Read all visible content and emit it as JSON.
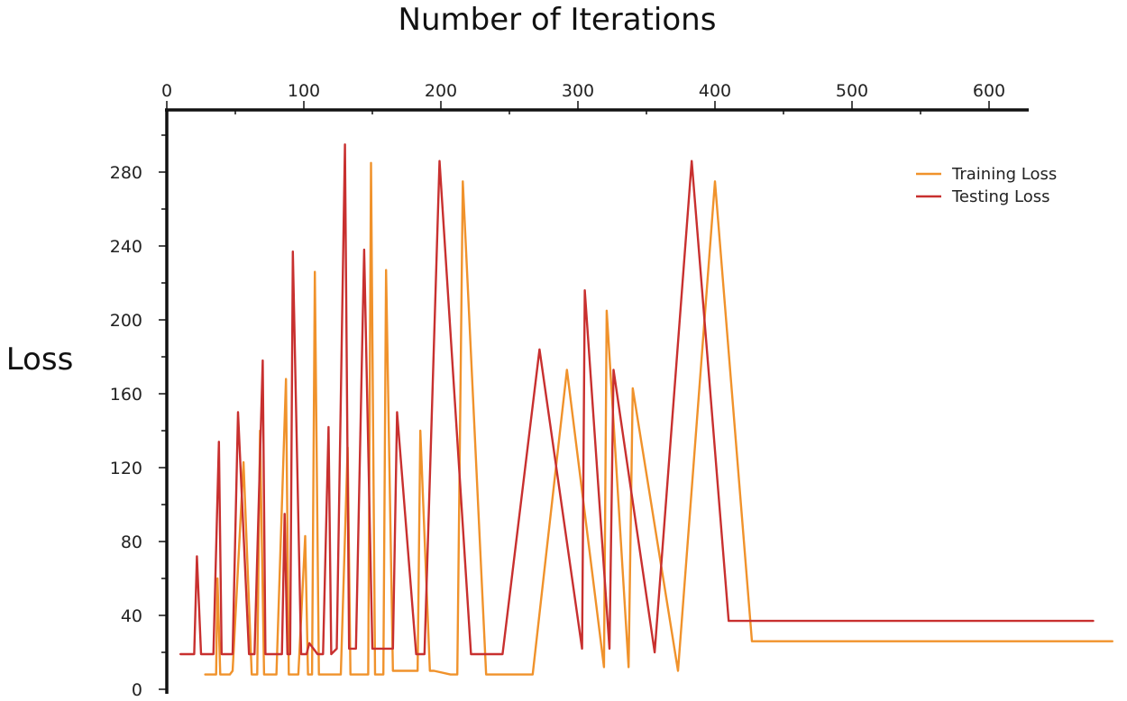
{
  "chart_data": {
    "type": "line",
    "title": "Number of Iterations",
    "ylabel": "Loss",
    "xlabel": "",
    "x_axis_position": "top",
    "xlim": [
      0,
      630
    ],
    "ylim": [
      0,
      300
    ],
    "x_ticks": [
      0,
      100,
      200,
      300,
      400,
      500,
      600
    ],
    "y_ticks": [
      0,
      40,
      80,
      120,
      160,
      200,
      240,
      280
    ],
    "grid": false,
    "legend_position": "top-right",
    "series": [
      {
        "name": "Training Loss",
        "color": "#f0922b",
        "points": [
          [
            28,
            8
          ],
          [
            36,
            8
          ],
          [
            37,
            60
          ],
          [
            39,
            8
          ],
          [
            46,
            8
          ],
          [
            48,
            10
          ],
          [
            56,
            123
          ],
          [
            62,
            8
          ],
          [
            66,
            8
          ],
          [
            68,
            140
          ],
          [
            71,
            8
          ],
          [
            80,
            8
          ],
          [
            87,
            168
          ],
          [
            89,
            8
          ],
          [
            96,
            8
          ],
          [
            101,
            83
          ],
          [
            103,
            8
          ],
          [
            106,
            8
          ],
          [
            108,
            226
          ],
          [
            111,
            8
          ],
          [
            115,
            8
          ],
          [
            120,
            8
          ],
          [
            124,
            8
          ],
          [
            127,
            8
          ],
          [
            132,
            131
          ],
          [
            134,
            8
          ],
          [
            140,
            8
          ],
          [
            147,
            8
          ],
          [
            149,
            285
          ],
          [
            152,
            8
          ],
          [
            158,
            8
          ],
          [
            160,
            227
          ],
          [
            165,
            10
          ],
          [
            183,
            10
          ],
          [
            185,
            140
          ],
          [
            192,
            10
          ],
          [
            195,
            10
          ],
          [
            207,
            8
          ],
          [
            212,
            8
          ],
          [
            216,
            275
          ],
          [
            233,
            8
          ],
          [
            242,
            8
          ],
          [
            267,
            8
          ],
          [
            292,
            173
          ],
          [
            319,
            12
          ],
          [
            321,
            205
          ],
          [
            337,
            12
          ],
          [
            340,
            163
          ],
          [
            373,
            10
          ],
          [
            400,
            275
          ],
          [
            427,
            26
          ],
          [
            690,
            26
          ]
        ]
      },
      {
        "name": "Testing Loss",
        "color": "#c8302f",
        "points": [
          [
            10,
            19
          ],
          [
            20,
            19
          ],
          [
            22,
            72
          ],
          [
            25,
            19
          ],
          [
            34,
            19
          ],
          [
            38,
            134
          ],
          [
            40,
            19
          ],
          [
            48,
            19
          ],
          [
            52,
            150
          ],
          [
            60,
            19
          ],
          [
            64,
            19
          ],
          [
            70,
            178
          ],
          [
            72,
            19
          ],
          [
            84,
            19
          ],
          [
            86,
            95
          ],
          [
            88,
            19
          ],
          [
            90,
            19
          ],
          [
            92,
            237
          ],
          [
            98,
            19
          ],
          [
            102,
            19
          ],
          [
            104,
            25
          ],
          [
            110,
            19
          ],
          [
            114,
            19
          ],
          [
            118,
            142
          ],
          [
            120,
            19
          ],
          [
            124,
            22
          ],
          [
            130,
            295
          ],
          [
            133,
            22
          ],
          [
            138,
            22
          ],
          [
            144,
            238
          ],
          [
            150,
            22
          ],
          [
            165,
            22
          ],
          [
            168,
            150
          ],
          [
            182,
            19
          ],
          [
            188,
            19
          ],
          [
            199,
            286
          ],
          [
            222,
            19
          ],
          [
            245,
            19
          ],
          [
            272,
            184
          ],
          [
            303,
            22
          ],
          [
            305,
            216
          ],
          [
            323,
            22
          ],
          [
            326,
            173
          ],
          [
            356,
            20
          ],
          [
            383,
            286
          ],
          [
            410,
            37
          ],
          [
            676,
            37
          ]
        ]
      }
    ]
  }
}
